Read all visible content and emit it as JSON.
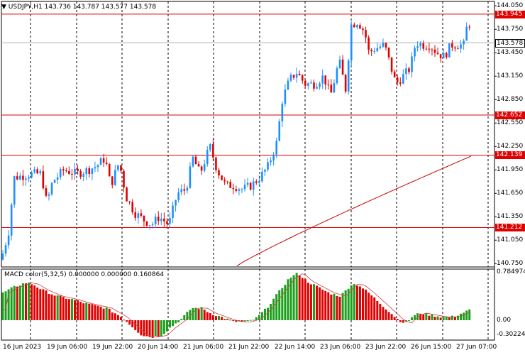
{
  "title": {
    "symbol": "USDJPY,H1",
    "ohlc": "143.736 143.787 143.577 143.578"
  },
  "macd": {
    "title": "MACD color(5,32,5) 0.000000 0.000000 0.160864",
    "ticks": [
      "0.784974",
      "0.00",
      "-0.302245"
    ]
  },
  "price_axis": {
    "ticks": [
      "144.050",
      "143.750",
      "143.450",
      "143.150",
      "142.850",
      "142.550",
      "142.250",
      "141.950",
      "141.650",
      "141.350",
      "141.050",
      "140.750"
    ]
  },
  "levels": [
    {
      "value": "143.945",
      "color": "#e00000"
    },
    {
      "value": "142.652",
      "color": "#e00000"
    },
    {
      "value": "142.139",
      "color": "#e00000"
    },
    {
      "value": "141.212",
      "color": "#e00000"
    }
  ],
  "current_price": {
    "value": "143.578"
  },
  "time_axis": {
    "labels": [
      "16 Jun 2023",
      "19 Jun 06:00",
      "19 Jun 22:00",
      "20 Jun 14:00",
      "21 Jun 06:00",
      "21 Jun 22:00",
      "22 Jun 14:00",
      "23 Jun 06:00",
      "23 Jun 22:00",
      "26 Jun 15:00",
      "27 Jun 07:00"
    ]
  },
  "colors": {
    "bull": "#1e8fff",
    "bear": "#e00000",
    "macd_up": "#1aa01a",
    "macd_down": "#e00000",
    "ma": "#c80000"
  }
}
